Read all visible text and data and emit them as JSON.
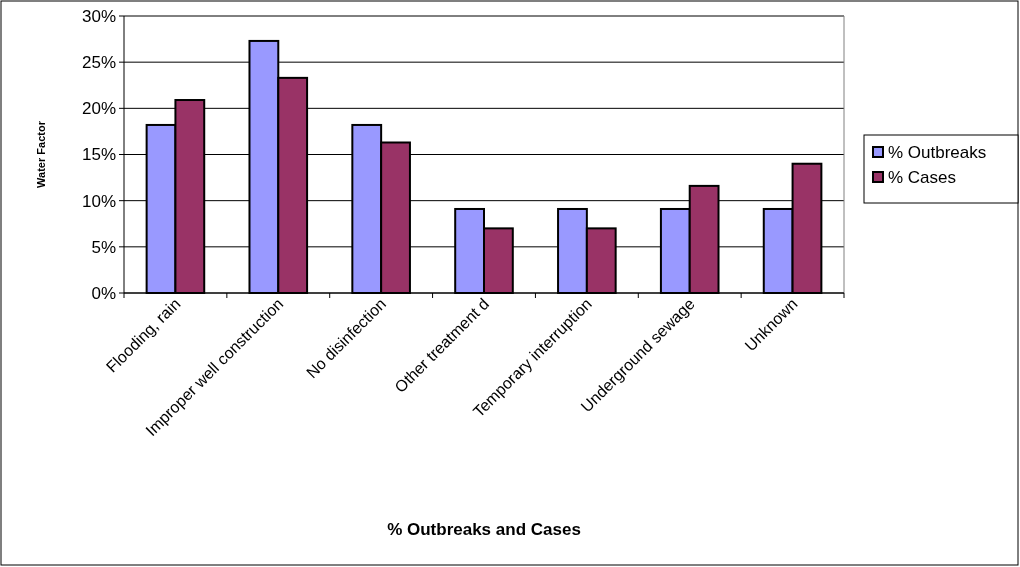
{
  "chart_data": {
    "type": "bar",
    "xlabel": "% Outbreaks and Cases",
    "ylabel": "Water Factor",
    "categories": [
      "Flooding, rain",
      "Improper well construction",
      "No disinfection",
      "Other treatment d",
      "Temporary interruption",
      "Underground sewage",
      "Unknown"
    ],
    "series": [
      {
        "name": "% Outbreaks",
        "color": "#9999ff",
        "values": [
          18.2,
          27.3,
          18.2,
          9.1,
          9.1,
          9.1,
          9.1
        ]
      },
      {
        "name": "% Cases",
        "color": "#993366",
        "values": [
          20.9,
          23.3,
          16.3,
          7.0,
          7.0,
          11.6,
          14.0
        ]
      }
    ],
    "ylim": [
      0,
      30
    ],
    "yticks": [
      {
        "value": 0,
        "label": "0%"
      },
      {
        "value": 5,
        "label": "5%"
      },
      {
        "value": 10,
        "label": "10%"
      },
      {
        "value": 15,
        "label": "15%"
      },
      {
        "value": 20,
        "label": "20%"
      },
      {
        "value": 25,
        "label": "25%"
      },
      {
        "value": 30,
        "label": "30%"
      }
    ],
    "grid": "y",
    "legend": "right"
  }
}
